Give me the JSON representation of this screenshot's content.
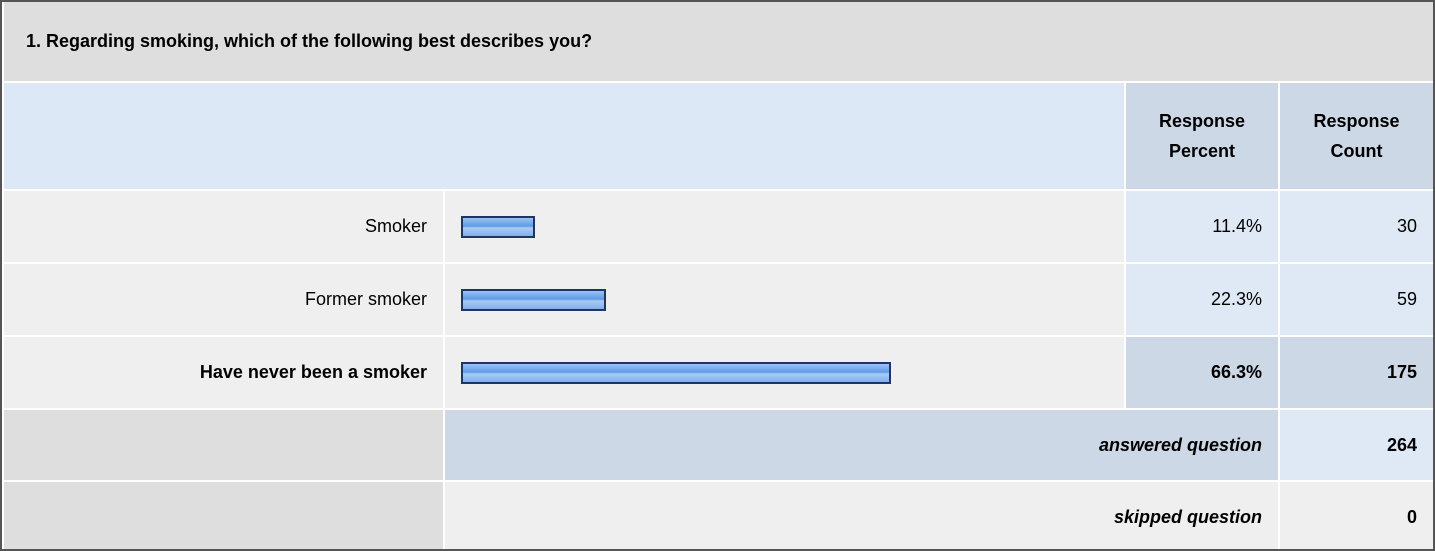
{
  "title": "1. Regarding smoking, which of the following best describes you?",
  "header": {
    "percent": "Response Percent",
    "count": "Response Count"
  },
  "rows": [
    {
      "label": "Smoker",
      "percent": 11.4,
      "percent_label": "11.4%",
      "count": 30,
      "highlight": false
    },
    {
      "label": "Former smoker",
      "percent": 22.3,
      "percent_label": "22.3%",
      "count": 59,
      "highlight": false
    },
    {
      "label": "Have never been a smoker",
      "percent": 66.3,
      "percent_label": "66.3%",
      "count": 175,
      "highlight": true
    }
  ],
  "answered": {
    "label": "answered question",
    "count": 264
  },
  "skipped": {
    "label": "skipped question",
    "count": 0
  }
}
